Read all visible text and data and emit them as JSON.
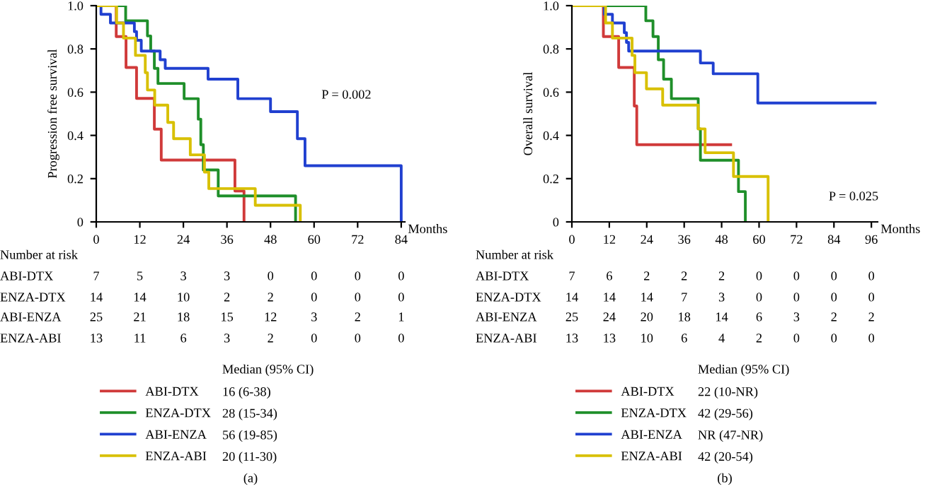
{
  "chart_data": [
    {
      "type": "step",
      "ylabel": "Progression free survival",
      "xlabel": "Months",
      "xlim": [
        0,
        85
      ],
      "xticks": [
        0,
        12,
        24,
        36,
        48,
        60,
        72,
        84
      ],
      "ylim": [
        0,
        1
      ],
      "yticks": [
        0,
        0.2,
        0.4,
        0.6,
        0.8,
        {
          "value": 1,
          "label": "1.0"
        }
      ],
      "grid": false,
      "legend": "bottom",
      "marker": "none",
      "line_style": "solid",
      "series": [
        {
          "name": "ABI-DTX",
          "color": "#d03a3a",
          "x": [
            0,
            5.5,
            8.2,
            11.1,
            16,
            17.9,
            38.2,
            40.7
          ],
          "values": [
            1,
            0.857,
            0.714,
            0.571,
            0.429,
            0.286,
            0.143,
            0
          ]
        },
        {
          "name": "ENZA-DTX",
          "color": "#1f8f2a",
          "x": [
            0,
            8.1,
            14.1,
            15,
            16,
            17,
            24.2,
            28.1,
            28.8,
            29.5,
            33.6,
            54.9
          ],
          "values": [
            1,
            0.93,
            0.86,
            0.79,
            0.71,
            0.64,
            0.57,
            0.475,
            0.357,
            0.24,
            0.12,
            0
          ]
        },
        {
          "name": "ABI-ENZA",
          "color": "#2040d0",
          "x": [
            0,
            1.3,
            3.9,
            10.5,
            11.1,
            12.4,
            17.6,
            19,
            30.8,
            39,
            48,
            55.4,
            57.5,
            84
          ],
          "values": [
            1,
            0.96,
            0.92,
            0.88,
            0.84,
            0.79,
            0.75,
            0.71,
            0.66,
            0.57,
            0.51,
            0.385,
            0.26,
            0
          ]
        },
        {
          "name": "ENZA-ABI",
          "color": "#d8c000",
          "x": [
            0,
            5.6,
            7.5,
            10.8,
            13.5,
            14.1,
            16.1,
            19.7,
            21.3,
            25.9,
            29.8,
            31,
            43.8,
            56.2
          ],
          "values": [
            1,
            0.92,
            0.85,
            0.77,
            0.69,
            0.61,
            0.54,
            0.46,
            0.385,
            0.31,
            0.23,
            0.154,
            0.077,
            0
          ]
        }
      ],
      "annotations": [
        "P = 0.002",
        "Number at risk",
        "7 5 3 3 0 0 0 0",
        "14 14 10 2 2 0 0 0",
        "25 21 18 15 12 3 2 1",
        "13 11 6 3 2 0 0 0",
        "Median (95% CI)",
        "16 (6-38)",
        "28 (15-34)",
        "56 (19-85)",
        "20 (11-30)",
        "(a)"
      ]
    },
    {
      "type": "step",
      "ylabel": "Overall survival",
      "xlabel": "Months",
      "xlim": [
        0,
        98
      ],
      "xticks": [
        0,
        12,
        24,
        36,
        48,
        60,
        72,
        84,
        96
      ],
      "ylim": [
        0,
        1
      ],
      "yticks": [
        0,
        0.2,
        0.4,
        0.6,
        0.8,
        {
          "value": 1,
          "label": "1.0"
        }
      ],
      "grid": false,
      "legend": "bottom",
      "marker": "none",
      "line_style": "solid",
      "series": [
        {
          "name": "ABI-DTX",
          "color": "#d03a3a",
          "x": [
            0,
            10.1,
            15,
            20,
            20.8,
            50.9
          ],
          "values": [
            1,
            0.857,
            0.714,
            0.536,
            0.357,
            0.357
          ]
        },
        {
          "name": "ENZA-DTX",
          "color": "#1f8f2a",
          "x": [
            0,
            23.7,
            26,
            27.7,
            29.4,
            31.9,
            40.5,
            41.2,
            53.4,
            55.6
          ],
          "values": [
            1,
            0.93,
            0.857,
            0.75,
            0.66,
            0.57,
            0.43,
            0.285,
            0.14,
            0
          ]
        },
        {
          "name": "ABI-ENZA",
          "color": "#2040d0",
          "x": [
            0,
            10.4,
            13,
            16.8,
            17.5,
            18.2,
            41.2,
            45.3,
            59.6,
            97.2
          ],
          "values": [
            1,
            0.96,
            0.92,
            0.875,
            0.83,
            0.79,
            0.735,
            0.685,
            0.55,
            0.55
          ]
        },
        {
          "name": "ENZA-ABI",
          "color": "#d8c000",
          "x": [
            0,
            10.8,
            13,
            19.3,
            20.2,
            23.9,
            29.1,
            40.5,
            42.7,
            51.8,
            62.9
          ],
          "values": [
            1,
            0.92,
            0.85,
            0.77,
            0.69,
            0.615,
            0.54,
            0.43,
            0.32,
            0.21,
            0
          ]
        }
      ],
      "annotations": [
        "P = 0.025",
        "Number at risk",
        "7 6 2 2 2 0 0 0 0",
        "14 14 14 7 3 0 0 0 0",
        "25 24 20 18 14 6 3 2 2",
        "13 13 10 6 4 2 0 0 0",
        "Median (95% CI)",
        "22 (10-NR)",
        "42 (29-56)",
        "NR (47-NR)",
        "42 (20-54)",
        "(b)"
      ]
    }
  ]
}
